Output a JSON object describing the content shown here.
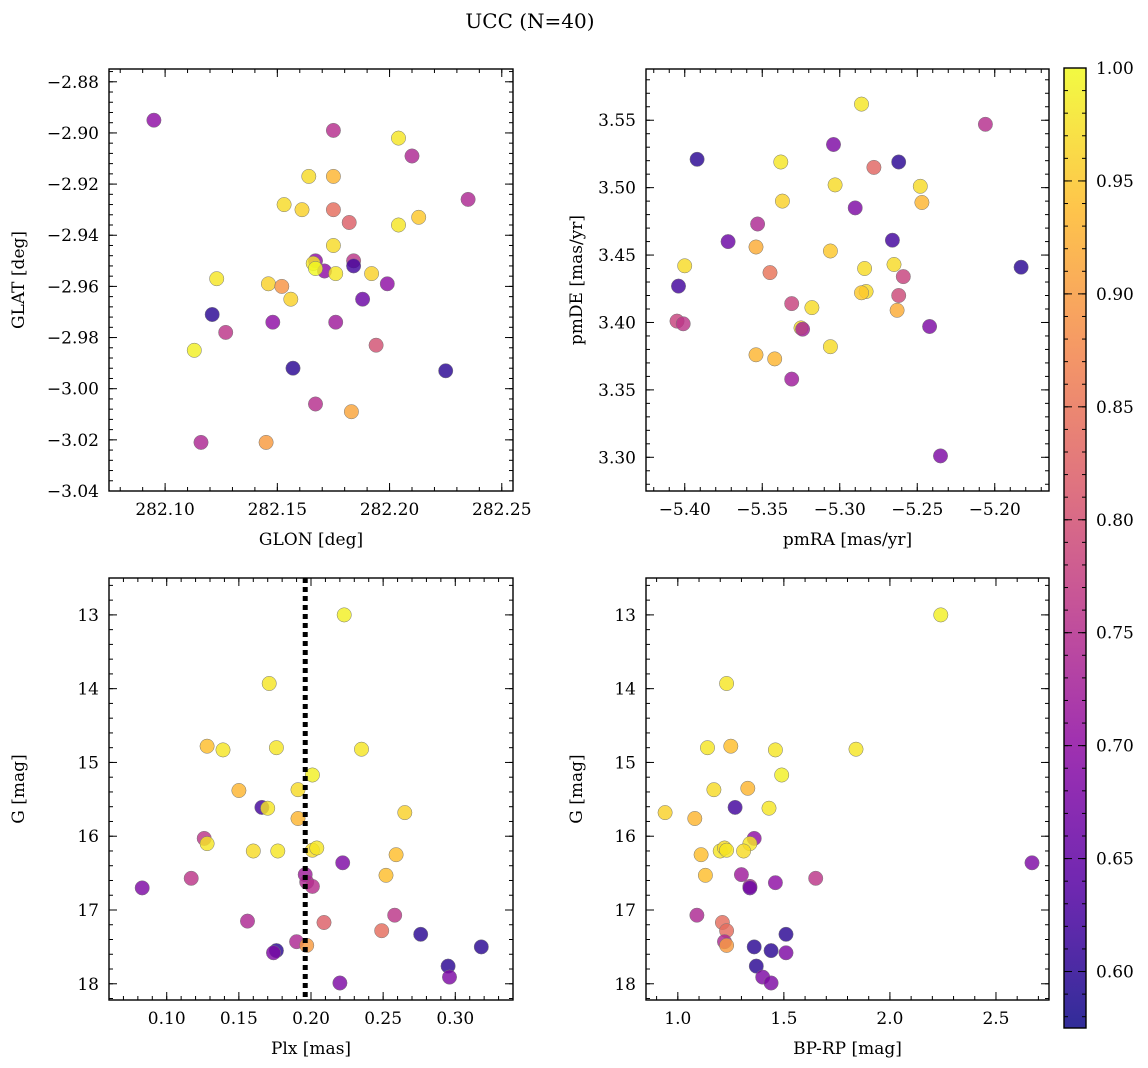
{
  "figure": {
    "title": "UCC (N=40)"
  },
  "colorbar": {
    "ticks": [
      0.6,
      0.65,
      0.7,
      0.75,
      0.8,
      0.85,
      0.9,
      0.95,
      1.0
    ],
    "tick_labels": [
      "0.60",
      "0.65",
      "0.70",
      "0.75",
      "0.80",
      "0.85",
      "0.90",
      "0.95",
      "1.00"
    ],
    "range": [
      0.575,
      1.0
    ],
    "colormap": "plasma"
  },
  "chart_data": [
    {
      "type": "scatter",
      "xlabel": "GLON [deg]",
      "ylabel": "GLAT [deg]",
      "xlim": [
        282.075,
        282.255
      ],
      "ylim": [
        -3.04,
        -2.875
      ],
      "xticks": [
        282.1,
        282.15,
        282.2,
        282.25
      ],
      "xtick_labels": [
        "282.10",
        "282.15",
        "282.20",
        "282.25"
      ],
      "yticks": [
        -3.04,
        -3.02,
        -3.0,
        -2.98,
        -2.96,
        -2.94,
        -2.92,
        -2.9,
        -2.88
      ],
      "ytick_labels": [
        "−3.04",
        "−3.02",
        "−3.00",
        "−2.98",
        "−2.96",
        "−2.94",
        "−2.92",
        "−2.90",
        "−2.88"
      ],
      "points": [
        {
          "x": 282.095,
          "y": -2.895,
          "c": 0.7
        },
        {
          "x": 282.175,
          "y": -2.899,
          "c": 0.75
        },
        {
          "x": 282.204,
          "y": -2.902,
          "c": 0.98
        },
        {
          "x": 282.21,
          "y": -2.909,
          "c": 0.74
        },
        {
          "x": 282.164,
          "y": -2.917,
          "c": 0.97
        },
        {
          "x": 282.175,
          "y": -2.917,
          "c": 0.93
        },
        {
          "x": 282.153,
          "y": -2.928,
          "c": 0.97
        },
        {
          "x": 282.161,
          "y": -2.93,
          "c": 0.96
        },
        {
          "x": 282.175,
          "y": -2.93,
          "c": 0.84
        },
        {
          "x": 282.235,
          "y": -2.926,
          "c": 0.74
        },
        {
          "x": 282.213,
          "y": -2.933,
          "c": 0.95
        },
        {
          "x": 282.182,
          "y": -2.935,
          "c": 0.82
        },
        {
          "x": 282.204,
          "y": -2.936,
          "c": 0.98
        },
        {
          "x": 282.175,
          "y": -2.944,
          "c": 0.97
        },
        {
          "x": 282.167,
          "y": -2.95,
          "c": 0.7
        },
        {
          "x": 282.184,
          "y": -2.95,
          "c": 0.76
        },
        {
          "x": 282.166,
          "y": -2.951,
          "c": 0.98
        },
        {
          "x": 282.171,
          "y": -2.954,
          "c": 0.7
        },
        {
          "x": 282.184,
          "y": -2.952,
          "c": 0.62
        },
        {
          "x": 282.167,
          "y": -2.953,
          "c": 1.0
        },
        {
          "x": 282.176,
          "y": -2.955,
          "c": 0.98
        },
        {
          "x": 282.192,
          "y": -2.955,
          "c": 0.96
        },
        {
          "x": 282.123,
          "y": -2.957,
          "c": 0.98
        },
        {
          "x": 282.199,
          "y": -2.959,
          "c": 0.7
        },
        {
          "x": 282.146,
          "y": -2.959,
          "c": 0.96
        },
        {
          "x": 282.152,
          "y": -2.96,
          "c": 0.89
        },
        {
          "x": 282.156,
          "y": -2.965,
          "c": 0.96
        },
        {
          "x": 282.188,
          "y": -2.965,
          "c": 0.66
        },
        {
          "x": 282.121,
          "y": -2.971,
          "c": 0.6
        },
        {
          "x": 282.148,
          "y": -2.974,
          "c": 0.7
        },
        {
          "x": 282.176,
          "y": -2.974,
          "c": 0.72
        },
        {
          "x": 282.127,
          "y": -2.978,
          "c": 0.76
        },
        {
          "x": 282.113,
          "y": -2.985,
          "c": 0.99
        },
        {
          "x": 282.194,
          "y": -2.983,
          "c": 0.8
        },
        {
          "x": 282.157,
          "y": -2.992,
          "c": 0.6
        },
        {
          "x": 282.225,
          "y": -2.993,
          "c": 0.6
        },
        {
          "x": 282.167,
          "y": -3.006,
          "c": 0.75
        },
        {
          "x": 282.183,
          "y": -3.009,
          "c": 0.91
        },
        {
          "x": 282.116,
          "y": -3.021,
          "c": 0.74
        },
        {
          "x": 282.145,
          "y": -3.021,
          "c": 0.9
        }
      ]
    },
    {
      "type": "scatter",
      "xlabel": "pmRA [mas/yr]",
      "ylabel": "pmDE [mas/yr]",
      "xlim": [
        -5.425,
        -5.165
      ],
      "ylim": [
        3.275,
        3.588
      ],
      "xticks": [
        -5.4,
        -5.35,
        -5.3,
        -5.25,
        -5.2
      ],
      "xtick_labels": [
        "−5.40",
        "−5.35",
        "−5.30",
        "−5.25",
        "−5.20"
      ],
      "yticks": [
        3.3,
        3.35,
        3.4,
        3.45,
        3.5,
        3.55
      ],
      "ytick_labels": [
        "3.30",
        "3.35",
        "3.40",
        "3.45",
        "3.50",
        "3.55"
      ],
      "points": [
        {
          "x": -5.286,
          "y": 3.562,
          "c": 0.98
        },
        {
          "x": -5.206,
          "y": 3.547,
          "c": 0.75
        },
        {
          "x": -5.304,
          "y": 3.532,
          "c": 0.68
        },
        {
          "x": -5.392,
          "y": 3.521,
          "c": 0.6
        },
        {
          "x": -5.338,
          "y": 3.519,
          "c": 0.98
        },
        {
          "x": -5.262,
          "y": 3.519,
          "c": 0.6
        },
        {
          "x": -5.278,
          "y": 3.515,
          "c": 0.83
        },
        {
          "x": -5.303,
          "y": 3.502,
          "c": 0.97
        },
        {
          "x": -5.248,
          "y": 3.501,
          "c": 0.97
        },
        {
          "x": -5.247,
          "y": 3.489,
          "c": 0.93
        },
        {
          "x": -5.337,
          "y": 3.49,
          "c": 0.96
        },
        {
          "x": -5.29,
          "y": 3.485,
          "c": 0.68
        },
        {
          "x": -5.353,
          "y": 3.473,
          "c": 0.74
        },
        {
          "x": -5.266,
          "y": 3.461,
          "c": 0.62
        },
        {
          "x": -5.372,
          "y": 3.46,
          "c": 0.66
        },
        {
          "x": -5.354,
          "y": 3.456,
          "c": 0.92
        },
        {
          "x": -5.306,
          "y": 3.453,
          "c": 0.95
        },
        {
          "x": -5.4,
          "y": 3.442,
          "c": 0.97
        },
        {
          "x": -5.265,
          "y": 3.443,
          "c": 0.97
        },
        {
          "x": -5.183,
          "y": 3.441,
          "c": 0.6
        },
        {
          "x": -5.284,
          "y": 3.44,
          "c": 0.97
        },
        {
          "x": -5.345,
          "y": 3.437,
          "c": 0.85
        },
        {
          "x": -5.259,
          "y": 3.434,
          "c": 0.78
        },
        {
          "x": -5.404,
          "y": 3.427,
          "c": 0.62
        },
        {
          "x": -5.283,
          "y": 3.423,
          "c": 0.97
        },
        {
          "x": -5.286,
          "y": 3.422,
          "c": 0.95
        },
        {
          "x": -5.262,
          "y": 3.42,
          "c": 0.79
        },
        {
          "x": -5.331,
          "y": 3.414,
          "c": 0.78
        },
        {
          "x": -5.318,
          "y": 3.411,
          "c": 0.97
        },
        {
          "x": -5.263,
          "y": 3.409,
          "c": 0.92
        },
        {
          "x": -5.405,
          "y": 3.401,
          "c": 0.78
        },
        {
          "x": -5.401,
          "y": 3.399,
          "c": 0.76
        },
        {
          "x": -5.242,
          "y": 3.397,
          "c": 0.68
        },
        {
          "x": -5.325,
          "y": 3.396,
          "c": 0.97
        },
        {
          "x": -5.324,
          "y": 3.395,
          "c": 0.73
        },
        {
          "x": -5.306,
          "y": 3.382,
          "c": 0.97
        },
        {
          "x": -5.354,
          "y": 3.376,
          "c": 0.93
        },
        {
          "x": -5.342,
          "y": 3.373,
          "c": 0.93
        },
        {
          "x": -5.331,
          "y": 3.358,
          "c": 0.72
        },
        {
          "x": -5.235,
          "y": 3.301,
          "c": 0.68
        }
      ]
    },
    {
      "type": "scatter",
      "xlabel": "Plx [mas]",
      "ylabel": "G [mag]",
      "xlim": [
        0.06,
        0.34
      ],
      "ylim": [
        18.22,
        12.5
      ],
      "y_inverted": true,
      "vline": 0.196,
      "xticks": [
        0.1,
        0.15,
        0.2,
        0.25,
        0.3
      ],
      "xtick_labels": [
        "0.10",
        "0.15",
        "0.20",
        "0.25",
        "0.30"
      ],
      "yticks": [
        13,
        14,
        15,
        16,
        17,
        18
      ],
      "ytick_labels": [
        "13",
        "14",
        "15",
        "16",
        "17",
        "18"
      ],
      "points": [
        {
          "x": 0.223,
          "y": 13.0,
          "c": 0.99
        },
        {
          "x": 0.171,
          "y": 13.93,
          "c": 0.98
        },
        {
          "x": 0.128,
          "y": 14.78,
          "c": 0.94
        },
        {
          "x": 0.139,
          "y": 14.83,
          "c": 0.98
        },
        {
          "x": 0.176,
          "y": 14.8,
          "c": 0.98
        },
        {
          "x": 0.235,
          "y": 14.82,
          "c": 0.98
        },
        {
          "x": 0.201,
          "y": 15.17,
          "c": 0.99
        },
        {
          "x": 0.15,
          "y": 15.38,
          "c": 0.93
        },
        {
          "x": 0.191,
          "y": 15.37,
          "c": 0.97
        },
        {
          "x": 0.166,
          "y": 15.61,
          "c": 0.62
        },
        {
          "x": 0.17,
          "y": 15.62,
          "c": 0.98
        },
        {
          "x": 0.265,
          "y": 15.68,
          "c": 0.96
        },
        {
          "x": 0.191,
          "y": 15.76,
          "c": 0.93
        },
        {
          "x": 0.126,
          "y": 16.03,
          "c": 0.76
        },
        {
          "x": 0.128,
          "y": 16.1,
          "c": 0.98
        },
        {
          "x": 0.16,
          "y": 16.2,
          "c": 0.97
        },
        {
          "x": 0.177,
          "y": 16.2,
          "c": 0.98
        },
        {
          "x": 0.201,
          "y": 16.19,
          "c": 0.97
        },
        {
          "x": 0.204,
          "y": 16.16,
          "c": 0.98
        },
        {
          "x": 0.259,
          "y": 16.25,
          "c": 0.94
        },
        {
          "x": 0.222,
          "y": 16.36,
          "c": 0.68
        },
        {
          "x": 0.196,
          "y": 16.52,
          "c": 0.72
        },
        {
          "x": 0.252,
          "y": 16.53,
          "c": 0.94
        },
        {
          "x": 0.117,
          "y": 16.57,
          "c": 0.76
        },
        {
          "x": 0.197,
          "y": 16.62,
          "c": 0.74
        },
        {
          "x": 0.201,
          "y": 16.68,
          "c": 0.75
        },
        {
          "x": 0.083,
          "y": 16.7,
          "c": 0.68
        },
        {
          "x": 0.258,
          "y": 17.07,
          "c": 0.76
        },
        {
          "x": 0.156,
          "y": 17.15,
          "c": 0.74
        },
        {
          "x": 0.209,
          "y": 17.17,
          "c": 0.82
        },
        {
          "x": 0.249,
          "y": 17.28,
          "c": 0.84
        },
        {
          "x": 0.276,
          "y": 17.33,
          "c": 0.6
        },
        {
          "x": 0.19,
          "y": 17.43,
          "c": 0.74
        },
        {
          "x": 0.197,
          "y": 17.48,
          "c": 0.9
        },
        {
          "x": 0.318,
          "y": 17.5,
          "c": 0.6
        },
        {
          "x": 0.176,
          "y": 17.55,
          "c": 0.6
        },
        {
          "x": 0.174,
          "y": 17.58,
          "c": 0.68
        },
        {
          "x": 0.295,
          "y": 17.76,
          "c": 0.6
        },
        {
          "x": 0.296,
          "y": 17.91,
          "c": 0.68
        },
        {
          "x": 0.22,
          "y": 17.99,
          "c": 0.68
        }
      ]
    },
    {
      "type": "scatter",
      "xlabel": "BP-RP [mag]",
      "ylabel": "G [mag]",
      "xlim": [
        0.85,
        2.75
      ],
      "ylim": [
        18.22,
        12.5
      ],
      "y_inverted": true,
      "xticks": [
        1.0,
        1.5,
        2.0,
        2.5
      ],
      "xtick_labels": [
        "1.0",
        "1.5",
        "2.0",
        "2.5"
      ],
      "yticks": [
        13,
        14,
        15,
        16,
        17,
        18
      ],
      "ytick_labels": [
        "13",
        "14",
        "15",
        "16",
        "17",
        "18"
      ],
      "points": [
        {
          "x": 2.24,
          "y": 13.0,
          "c": 0.99
        },
        {
          "x": 1.23,
          "y": 13.93,
          "c": 0.98
        },
        {
          "x": 1.14,
          "y": 14.8,
          "c": 0.98
        },
        {
          "x": 1.25,
          "y": 14.78,
          "c": 0.94
        },
        {
          "x": 1.46,
          "y": 14.83,
          "c": 0.98
        },
        {
          "x": 1.84,
          "y": 14.82,
          "c": 0.98
        },
        {
          "x": 1.49,
          "y": 15.17,
          "c": 0.99
        },
        {
          "x": 1.17,
          "y": 15.37,
          "c": 0.97
        },
        {
          "x": 1.33,
          "y": 15.35,
          "c": 0.93
        },
        {
          "x": 1.27,
          "y": 15.61,
          "c": 0.62
        },
        {
          "x": 1.43,
          "y": 15.62,
          "c": 0.98
        },
        {
          "x": 0.94,
          "y": 15.68,
          "c": 0.96
        },
        {
          "x": 1.08,
          "y": 15.76,
          "c": 0.93
        },
        {
          "x": 1.36,
          "y": 16.03,
          "c": 0.7
        },
        {
          "x": 1.34,
          "y": 16.1,
          "c": 0.98
        },
        {
          "x": 1.31,
          "y": 16.2,
          "c": 0.97
        },
        {
          "x": 1.2,
          "y": 16.2,
          "c": 0.98
        },
        {
          "x": 1.22,
          "y": 16.16,
          "c": 0.97
        },
        {
          "x": 1.23,
          "y": 16.19,
          "c": 0.98
        },
        {
          "x": 1.11,
          "y": 16.25,
          "c": 0.94
        },
        {
          "x": 2.67,
          "y": 16.36,
          "c": 0.68
        },
        {
          "x": 1.3,
          "y": 16.52,
          "c": 0.72
        },
        {
          "x": 1.13,
          "y": 16.53,
          "c": 0.94
        },
        {
          "x": 1.65,
          "y": 16.57,
          "c": 0.76
        },
        {
          "x": 1.46,
          "y": 16.63,
          "c": 0.7
        },
        {
          "x": 1.34,
          "y": 16.68,
          "c": 0.74
        },
        {
          "x": 1.34,
          "y": 16.7,
          "c": 0.66
        },
        {
          "x": 1.09,
          "y": 17.07,
          "c": 0.74
        },
        {
          "x": 1.21,
          "y": 17.17,
          "c": 0.84
        },
        {
          "x": 1.23,
          "y": 17.28,
          "c": 0.84
        },
        {
          "x": 1.51,
          "y": 17.33,
          "c": 0.6
        },
        {
          "x": 1.22,
          "y": 17.43,
          "c": 0.74
        },
        {
          "x": 1.23,
          "y": 17.48,
          "c": 0.9
        },
        {
          "x": 1.36,
          "y": 17.5,
          "c": 0.6
        },
        {
          "x": 1.44,
          "y": 17.55,
          "c": 0.6
        },
        {
          "x": 1.51,
          "y": 17.58,
          "c": 0.68
        },
        {
          "x": 1.37,
          "y": 17.76,
          "c": 0.6
        },
        {
          "x": 1.4,
          "y": 17.91,
          "c": 0.68
        },
        {
          "x": 1.44,
          "y": 17.99,
          "c": 0.68
        }
      ]
    }
  ]
}
